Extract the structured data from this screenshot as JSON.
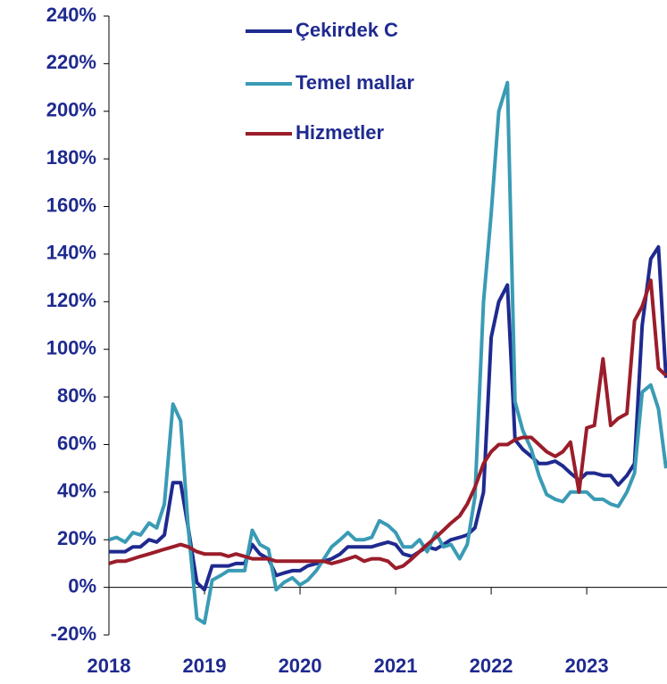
{
  "chart_data": {
    "type": "line",
    "x": [
      2018,
      2018.08,
      2018.17,
      2018.25,
      2018.33,
      2018.42,
      2018.5,
      2018.58,
      2018.67,
      2018.75,
      2018.83,
      2018.92,
      2019,
      2019.08,
      2019.17,
      2019.25,
      2019.33,
      2019.42,
      2019.5,
      2019.58,
      2019.67,
      2019.75,
      2019.83,
      2019.92,
      2020,
      2020.08,
      2020.17,
      2020.25,
      2020.33,
      2020.42,
      2020.5,
      2020.58,
      2020.67,
      2020.75,
      2020.83,
      2020.92,
      2021,
      2021.08,
      2021.17,
      2021.25,
      2021.33,
      2021.42,
      2021.5,
      2021.58,
      2021.67,
      2021.75,
      2021.83,
      2021.92,
      2022,
      2022.08,
      2022.17,
      2022.25,
      2022.33,
      2022.42,
      2022.5,
      2022.58,
      2022.67,
      2022.75,
      2022.83,
      2022.92,
      2023,
      2023.08,
      2023.17,
      2023.25,
      2023.33,
      2023.42,
      2023.5,
      2023.58,
      2023.67,
      2023.75,
      2023.83
    ],
    "series": [
      {
        "name": "Çekirdek C",
        "color": "#1f2a8f",
        "values": [
          15,
          15,
          15,
          17,
          17,
          20,
          19,
          22,
          44,
          44,
          25,
          2,
          -1,
          9,
          9,
          9,
          10,
          10,
          18,
          14,
          12,
          5,
          6,
          7,
          7,
          9,
          10,
          11,
          12,
          14,
          17,
          17,
          17,
          17,
          18,
          19,
          18,
          14,
          13,
          15,
          17,
          16,
          18,
          20,
          21,
          22,
          25,
          40,
          105,
          120,
          127,
          62,
          58,
          55,
          52,
          52,
          53,
          51,
          48,
          45,
          48,
          48,
          47,
          47,
          43,
          47,
          52,
          110,
          138,
          143,
          88
        ]
      },
      {
        "name": "Temel mallar",
        "color": "#3a9bb5",
        "values": [
          20,
          21,
          19,
          23,
          22,
          27,
          25,
          35,
          77,
          70,
          25,
          -13,
          -15,
          3,
          5,
          7,
          7,
          7,
          24,
          18,
          16,
          -1,
          2,
          4,
          1,
          3,
          7,
          12,
          17,
          20,
          23,
          20,
          20,
          21,
          28,
          26,
          23,
          17,
          17,
          20,
          15,
          23,
          17,
          18,
          12,
          18,
          38,
          120,
          157,
          200,
          212,
          78,
          66,
          58,
          47,
          39,
          37,
          36,
          40,
          40,
          40,
          37,
          37,
          35,
          34,
          40,
          48,
          82,
          85,
          75,
          50
        ]
      },
      {
        "name": "Hizmetler",
        "color": "#9b1d2a",
        "values": [
          10,
          11,
          11,
          12,
          13,
          14,
          15,
          16,
          17,
          18,
          17,
          15,
          14,
          14,
          14,
          13,
          14,
          13,
          12,
          12,
          12,
          11,
          11,
          11,
          11,
          11,
          11,
          11,
          10,
          11,
          12,
          13,
          11,
          12,
          12,
          11,
          8,
          9,
          12,
          15,
          18,
          21,
          24,
          27,
          30,
          35,
          42,
          52,
          57,
          60,
          60,
          62,
          63,
          63,
          60,
          57,
          55,
          57,
          61,
          40,
          67,
          68,
          96,
          68,
          71,
          73,
          112,
          118,
          129,
          92,
          89
        ]
      }
    ],
    "xlim": [
      2018,
      2023.84
    ],
    "xticks": [
      2018,
      2019,
      2020,
      2021,
      2022,
      2023
    ],
    "ylim": [
      -20,
      240
    ],
    "yticks": [
      {
        "value": -20,
        "label": "-20%"
      },
      {
        "value": 0,
        "label": "0%"
      },
      {
        "value": 20,
        "label": "20%"
      },
      {
        "value": 40,
        "label": "40%"
      },
      {
        "value": 60,
        "label": "60%"
      },
      {
        "value": 80,
        "label": "80%"
      },
      {
        "value": 100,
        "label": "100%"
      },
      {
        "value": 120,
        "label": "120%"
      },
      {
        "value": 140,
        "label": "140%"
      },
      {
        "value": 160,
        "label": "160%"
      },
      {
        "value": 180,
        "label": "180%"
      },
      {
        "value": 200,
        "label": "200%"
      },
      {
        "value": 220,
        "label": "220%"
      },
      {
        "value": 240,
        "label": "240%"
      }
    ]
  }
}
